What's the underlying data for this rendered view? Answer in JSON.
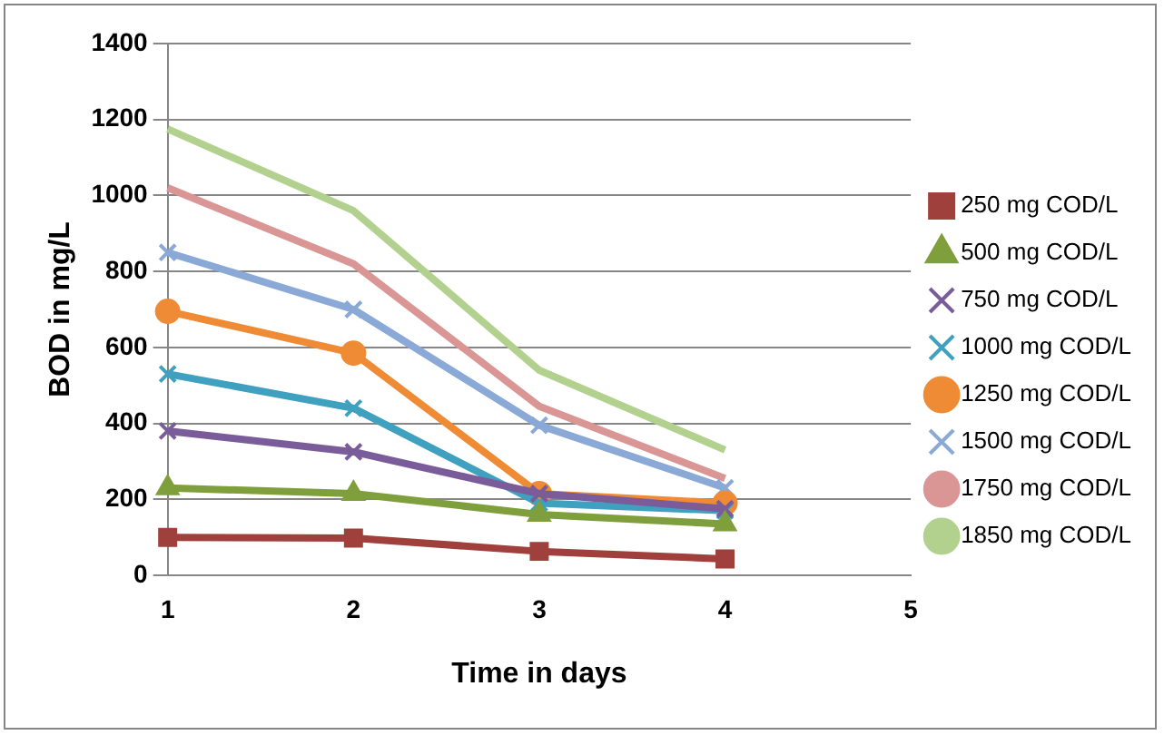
{
  "chart_data": {
    "type": "line",
    "xlabel": "Time in days",
    "ylabel": "BOD in mg/L",
    "x": [
      1,
      2,
      3,
      4
    ],
    "xlim": [
      1,
      5
    ],
    "xticks": [
      1,
      2,
      3,
      4,
      5
    ],
    "ylim": [
      0,
      1400
    ],
    "yticks": [
      0,
      200,
      400,
      600,
      800,
      1000,
      1200,
      1400
    ],
    "grid": "y",
    "legend": "right",
    "series": [
      {
        "name": "250 mg COD/L",
        "color": "#a0403c",
        "marker": "square",
        "values": [
          100,
          98,
          63,
          43
        ]
      },
      {
        "name": "500 mg COD/L",
        "color": "#7f9f3c",
        "marker": "triangle",
        "values": [
          230,
          215,
          160,
          135
        ]
      },
      {
        "name": "750 mg COD/L",
        "color": "#7a5c9a",
        "marker": "cross",
        "values": [
          380,
          325,
          215,
          175
        ]
      },
      {
        "name": "1000 mg COD/L",
        "color": "#3fa0bf",
        "marker": "cross",
        "values": [
          530,
          440,
          190,
          170
        ]
      },
      {
        "name": "1250 mg COD/L",
        "color": "#ef8a35",
        "marker": "circle",
        "values": [
          695,
          585,
          215,
          190
        ]
      },
      {
        "name": "1500 mg COD/L",
        "color": "#8aa9d6",
        "marker": "cross",
        "values": [
          850,
          700,
          395,
          230
        ]
      },
      {
        "name": "1750 mg COD/L",
        "color": "#d99694",
        "marker": "none",
        "values": [
          1020,
          820,
          445,
          255
        ]
      },
      {
        "name": "1850 mg COD/L",
        "color": "#b3d18e",
        "marker": "none",
        "values": [
          1175,
          960,
          540,
          330
        ]
      }
    ]
  }
}
